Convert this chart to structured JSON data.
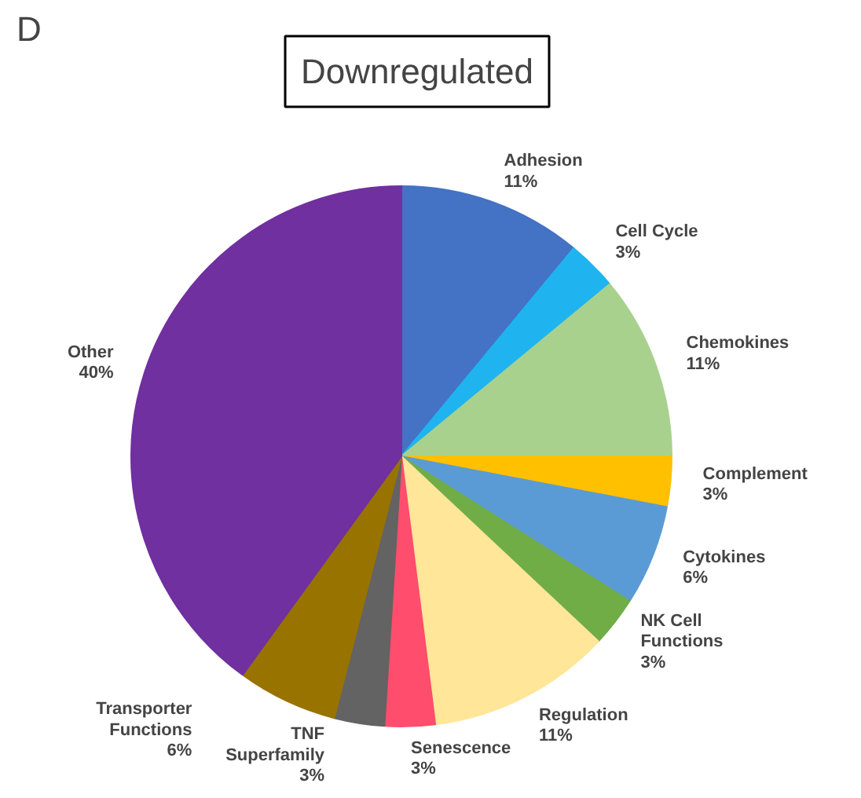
{
  "chart_data": {
    "type": "pie",
    "title": "Downregulated",
    "annotations": [
      "D"
    ],
    "categories": [
      "Adhesion",
      "Cell Cycle",
      "Chemokines",
      "Complement",
      "Cytokines",
      "NK Cell\nFunctions",
      "Regulation",
      "Senescence",
      "TNF\nSuperfamily",
      "Transporter\nFunctions",
      "Other"
    ],
    "values": [
      11,
      3,
      11,
      3,
      6,
      3,
      11,
      3,
      3,
      6,
      40
    ],
    "value_labels": [
      "11%",
      "3%",
      "11%",
      "3%",
      "6%",
      "3%",
      "11%",
      "3%",
      "3%",
      "6%",
      "40%"
    ],
    "colors": [
      "#4472c4",
      "#1fb4f0",
      "#a9d18e",
      "#ffc000",
      "#5b9bd5",
      "#70ad47",
      "#ffe699",
      "#ff4d6d",
      "#636363",
      "#997300",
      "#7030a0"
    ]
  }
}
